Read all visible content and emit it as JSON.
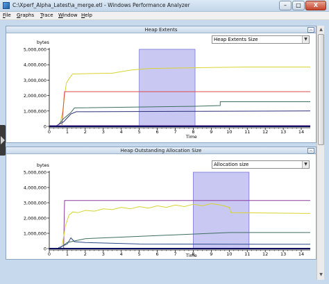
{
  "window": {
    "title": "C:\\Xperf_Alpha_Latest\\a_merge.etl - Windows Performance Analyzer",
    "minimize_label": "–",
    "maximize_label": "□",
    "close_label": "X"
  },
  "menu": {
    "items": [
      {
        "label": "File",
        "accel": "F",
        "rest": "ile"
      },
      {
        "label": "Graphs",
        "accel": "G",
        "rest": "raphs"
      },
      {
        "label": "Trace",
        "accel": "T",
        "rest": "race"
      },
      {
        "label": "Window",
        "accel": "W",
        "rest": "indow"
      },
      {
        "label": "Help",
        "accel": "H",
        "rest": "elp"
      }
    ]
  },
  "panels": [
    {
      "title": "Heap Extents",
      "dropdown_value": "Heap Extents Size",
      "collapse_icon": "chevron-up-icon"
    },
    {
      "title": "Heap Outstanding Allocation Size",
      "dropdown_value": "Allocation size",
      "collapse_icon": "chevron-up-icon"
    }
  ],
  "chart_data": [
    {
      "type": "line",
      "title": "Heap Extents",
      "ylabel": "bytes",
      "xlabel": "Time",
      "ylim": [
        0,
        5000000
      ],
      "xlim": [
        0,
        14.5
      ],
      "y_ticks": [
        "0",
        "1,000,000",
        "2,000,000",
        "3,000,000",
        "4,000,000",
        "5,000,000"
      ],
      "y_tick_values": [
        0,
        1000000,
        2000000,
        3000000,
        4000000,
        5000000
      ],
      "x_ticks": [
        "0",
        "1",
        "2",
        "3",
        "4",
        "5",
        "6",
        "7",
        "8",
        "9",
        "10",
        "11",
        "12",
        "13",
        "14"
      ],
      "selection": [
        5.0,
        8.1
      ],
      "selection_color": "#c8c8f2",
      "series": [
        {
          "color": "#d8d430",
          "x": [
            0.6,
            0.75,
            0.85,
            0.95,
            1.1,
            1.3,
            1.5,
            2.0,
            3.5,
            4.5,
            5.5,
            6.5,
            8.0,
            9.5,
            11.0,
            12.5,
            14.5
          ],
          "y": [
            200000,
            1000000,
            2000000,
            2800000,
            3100000,
            3400000,
            3400000,
            3420000,
            3450000,
            3650000,
            3750000,
            3770000,
            3800000,
            3830000,
            3850000,
            3850000,
            3850000
          ]
        },
        {
          "color": "#d94848",
          "x": [
            0.7,
            0.85,
            0.9,
            14.5
          ],
          "y": [
            100000,
            2250000,
            2250000,
            2250000
          ]
        },
        {
          "color": "#3d6e5e",
          "x": [
            0.5,
            0.8,
            1.2,
            1.4,
            8.0,
            9.5,
            9.5,
            14.5
          ],
          "y": [
            100000,
            500000,
            900000,
            1200000,
            1300000,
            1350000,
            1600000,
            1600000
          ]
        },
        {
          "color": "#2d2d78",
          "x": [
            0.4,
            0.8,
            1.2,
            1.5,
            14.5
          ],
          "y": [
            50000,
            300000,
            800000,
            950000,
            1000000
          ]
        },
        {
          "color": "#7a4aa8",
          "x": [
            0,
            14.5
          ],
          "y": [
            50000,
            50000
          ]
        },
        {
          "color": "#101060",
          "x": [
            0,
            14.5
          ],
          "y": [
            0,
            0
          ]
        }
      ]
    },
    {
      "type": "line",
      "title": "Heap Outstanding Allocation Size",
      "ylabel": "bytes",
      "xlabel": "Time",
      "ylim": [
        0,
        5000000
      ],
      "xlim": [
        0,
        14.5
      ],
      "y_ticks": [
        "0",
        "1,000,000",
        "2,000,000",
        "3,000,000",
        "4,000,000",
        "5,000,000"
      ],
      "y_tick_values": [
        0,
        1000000,
        2000000,
        3000000,
        4000000,
        5000000
      ],
      "x_ticks": [
        "0",
        "1",
        "2",
        "3",
        "4",
        "5",
        "6",
        "7",
        "8",
        "9",
        "10",
        "11",
        "12",
        "13",
        "14"
      ],
      "selection": [
        8.0,
        11.1
      ],
      "selection_color": "#c8c8f2",
      "series": [
        {
          "color": "#8a3a9a",
          "x": [
            0.8,
            0.85,
            14.5
          ],
          "y": [
            0,
            3150000,
            3150000
          ]
        },
        {
          "color": "#d8d430",
          "x": [
            0.7,
            0.9,
            1.1,
            1.3,
            1.6,
            2.0,
            2.5,
            3.0,
            3.5,
            4.0,
            4.5,
            5.0,
            5.5,
            6.0,
            6.5,
            7.0,
            7.5,
            8.0,
            8.5,
            9.0,
            9.5,
            10.0,
            10.1,
            14.5
          ],
          "y": [
            100000,
            1500000,
            2200000,
            2400000,
            2350000,
            2500000,
            2450000,
            2600000,
            2550000,
            2700000,
            2600000,
            2750000,
            2650000,
            2800000,
            2700000,
            2850000,
            2750000,
            2900000,
            2800000,
            2950000,
            2850000,
            2700000,
            2350000,
            2300000
          ]
        },
        {
          "color": "#3d6e5e",
          "x": [
            0.6,
            1.0,
            2.0,
            4.0,
            6.0,
            8.0,
            10.0,
            12.0,
            14.5
          ],
          "y": [
            50000,
            400000,
            650000,
            750000,
            850000,
            950000,
            1050000,
            1050000,
            1050000
          ]
        },
        {
          "color": "#2d4a8a",
          "x": [
            0.5,
            1.0,
            1.2,
            1.4,
            2.0,
            5.0,
            14.5
          ],
          "y": [
            50000,
            300000,
            700000,
            450000,
            400000,
            300000,
            280000
          ]
        },
        {
          "color": "#101060",
          "x": [
            0,
            14.5
          ],
          "y": [
            0,
            0
          ]
        }
      ]
    }
  ]
}
